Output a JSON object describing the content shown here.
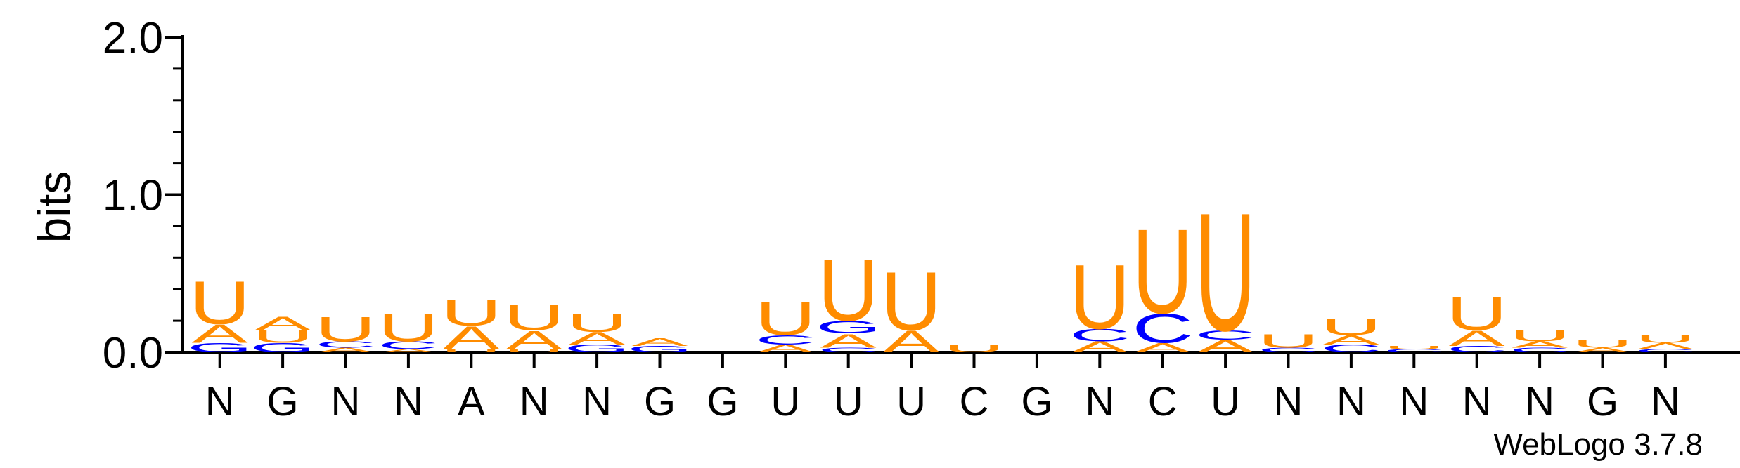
{
  "chart_data": {
    "type": "sequence-logo",
    "ylabel": "bits",
    "ylim": [
      0,
      2.0
    ],
    "y_ticks": [
      "0.0",
      "1.0",
      "2.0"
    ],
    "y_tick_values": [
      0,
      1.0,
      2.0
    ],
    "footer": "WebLogo 3.7.8",
    "colors": {
      "U": "#ff8c00",
      "A": "#ff8c00",
      "C": "#0000ff",
      "G": "#0000ff"
    },
    "positions": [
      {
        "label": "N",
        "stack": [
          [
            "G",
            0.06
          ],
          [
            "A",
            0.12
          ],
          [
            "U",
            0.28
          ]
        ]
      },
      {
        "label": "G",
        "stack": [
          [
            "G",
            0.06
          ],
          [
            "U",
            0.08
          ],
          [
            "A",
            0.09
          ]
        ]
      },
      {
        "label": "N",
        "stack": [
          [
            "A",
            0.03
          ],
          [
            "C",
            0.04
          ],
          [
            "U",
            0.16
          ]
        ]
      },
      {
        "label": "N",
        "stack": [
          [
            "A",
            0.02
          ],
          [
            "C",
            0.05
          ],
          [
            "U",
            0.18
          ]
        ]
      },
      {
        "label": "A",
        "stack": [
          [
            "U",
            0.02
          ],
          [
            "A",
            0.15
          ],
          [
            "U",
            0.17
          ]
        ]
      },
      {
        "label": "N",
        "stack": [
          [
            "U",
            0.02
          ],
          [
            "A",
            0.12
          ],
          [
            "U",
            0.17
          ]
        ]
      },
      {
        "label": "N",
        "stack": [
          [
            "G",
            0.05
          ],
          [
            "A",
            0.08
          ],
          [
            "U",
            0.12
          ]
        ]
      },
      {
        "label": "G",
        "stack": [
          [
            "G",
            0.04
          ],
          [
            "A",
            0.05
          ]
        ]
      },
      {
        "label": "G",
        "stack": []
      },
      {
        "label": "U",
        "stack": [
          [
            "A",
            0.05
          ],
          [
            "C",
            0.06
          ],
          [
            "U",
            0.22
          ]
        ]
      },
      {
        "label": "U",
        "stack": [
          [
            "C",
            0.03
          ],
          [
            "A",
            0.09
          ],
          [
            "G",
            0.08
          ],
          [
            "U",
            0.4
          ]
        ]
      },
      {
        "label": "U",
        "stack": [
          [
            "A",
            0.14
          ],
          [
            "U",
            0.38
          ]
        ]
      },
      {
        "label": "C",
        "stack": [
          [
            "U",
            0.05
          ]
        ]
      },
      {
        "label": "G",
        "stack": []
      },
      {
        "label": "N",
        "stack": [
          [
            "A",
            0.07
          ],
          [
            "C",
            0.08
          ],
          [
            "U",
            0.42
          ]
        ]
      },
      {
        "label": "C",
        "stack": [
          [
            "A",
            0.06
          ],
          [
            "C",
            0.19
          ],
          [
            "U",
            0.55
          ]
        ]
      },
      {
        "label": "U",
        "stack": [
          [
            "A",
            0.08
          ],
          [
            "C",
            0.06
          ],
          [
            "U",
            0.77
          ]
        ]
      },
      {
        "label": "N",
        "stack": [
          [
            "C",
            0.03
          ],
          [
            "U",
            0.09
          ]
        ]
      },
      {
        "label": "N",
        "stack": [
          [
            "C",
            0.05
          ],
          [
            "A",
            0.06
          ],
          [
            "U",
            0.11
          ]
        ]
      },
      {
        "label": "N",
        "stack": [
          [
            "C",
            0.02
          ],
          [
            "U",
            0.02
          ]
        ]
      },
      {
        "label": "N",
        "stack": [
          [
            "C",
            0.04
          ],
          [
            "A",
            0.1
          ],
          [
            "U",
            0.22
          ]
        ]
      },
      {
        "label": "N",
        "stack": [
          [
            "C",
            0.03
          ],
          [
            "A",
            0.04
          ],
          [
            "U",
            0.07
          ]
        ]
      },
      {
        "label": "G",
        "stack": [
          [
            "A",
            0.03
          ],
          [
            "U",
            0.05
          ]
        ]
      },
      {
        "label": "N",
        "stack": [
          [
            "C",
            0.02
          ],
          [
            "A",
            0.04
          ],
          [
            "U",
            0.05
          ]
        ]
      }
    ]
  }
}
